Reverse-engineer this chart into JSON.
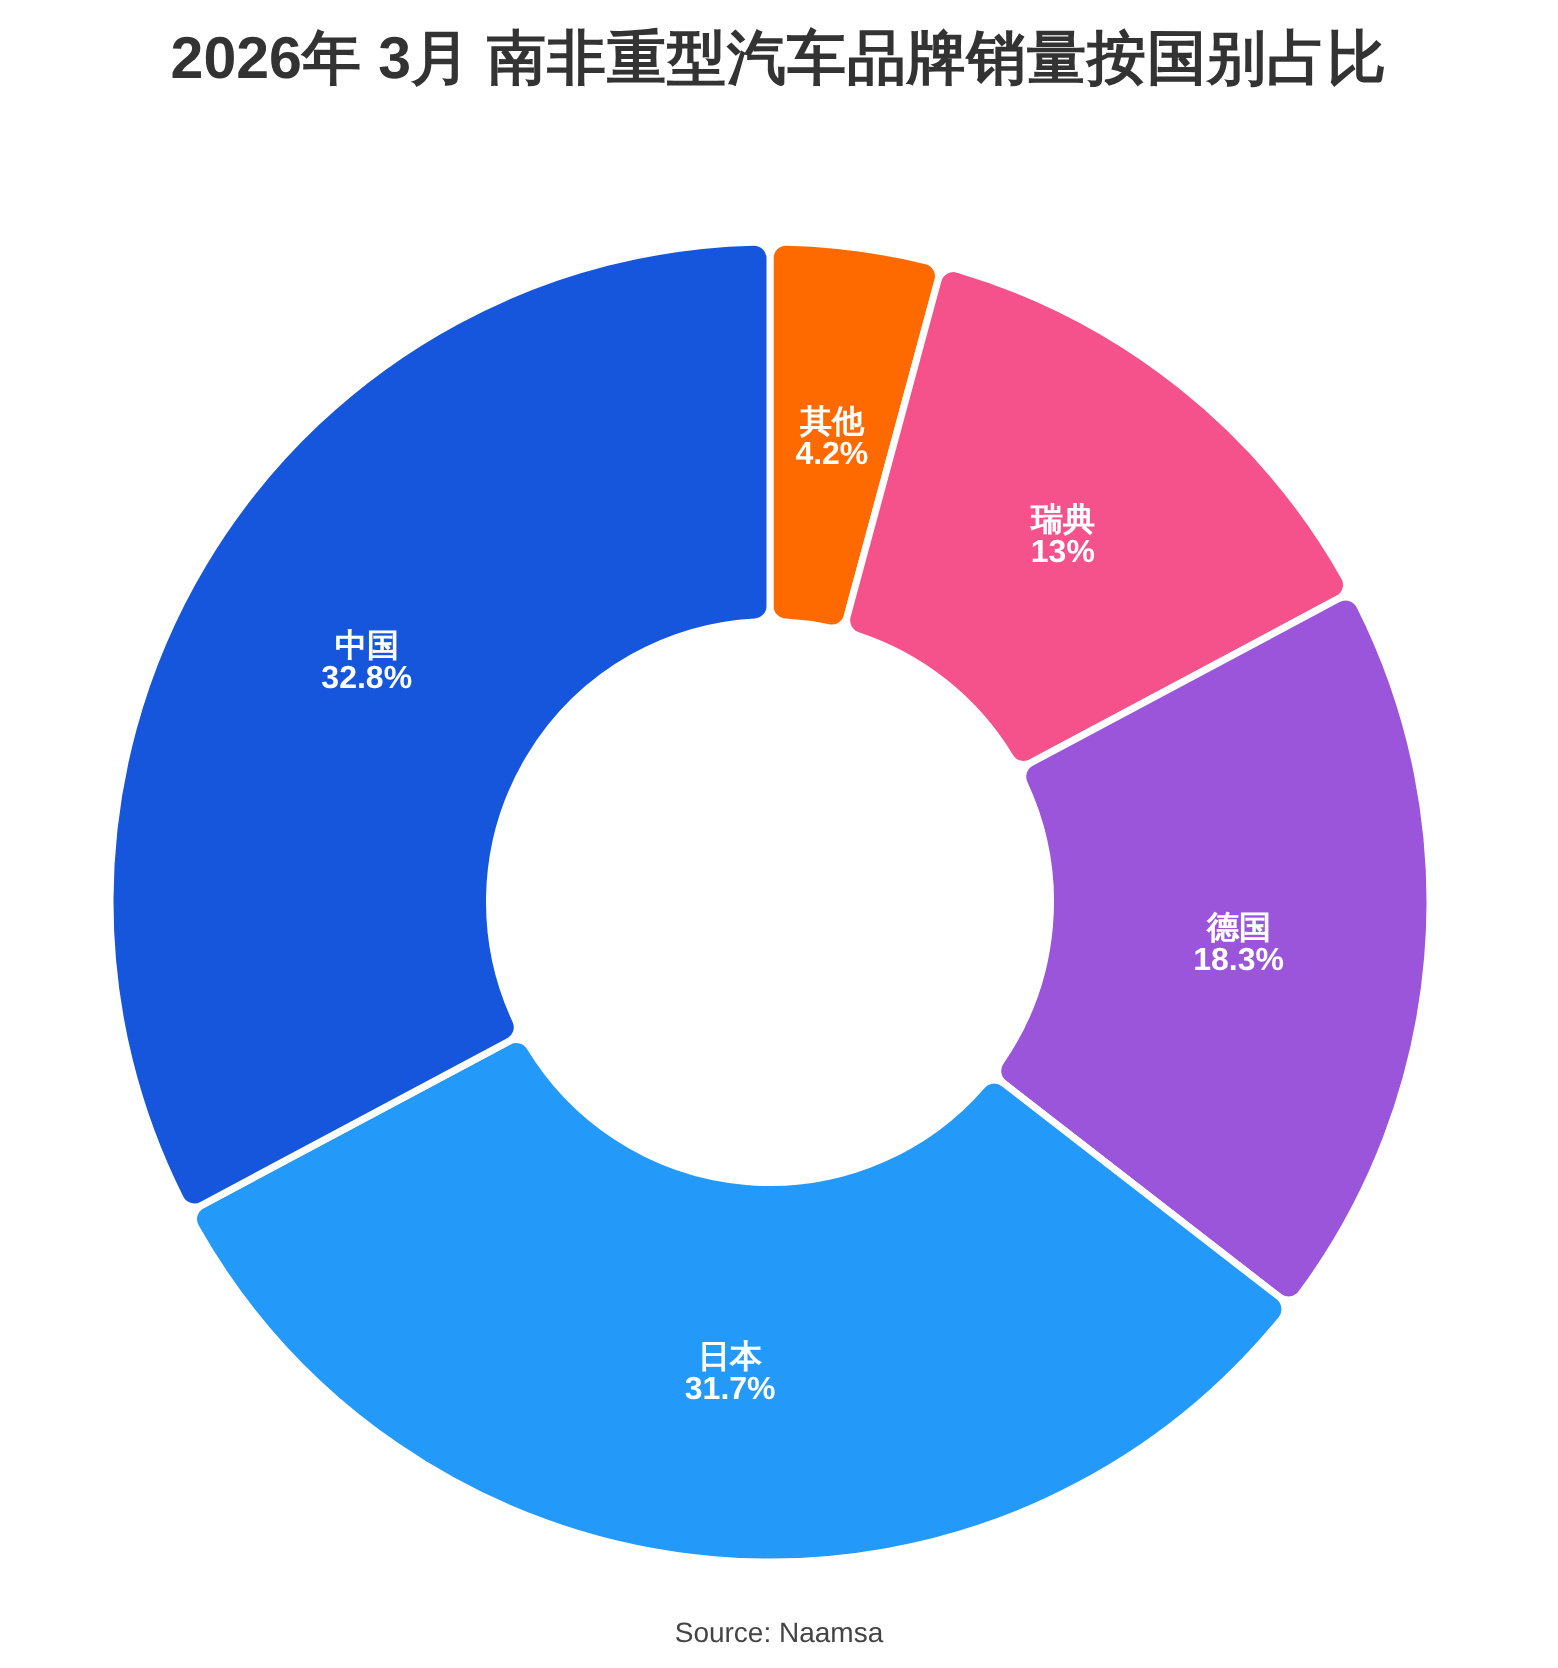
{
  "chart_data": {
    "type": "donut",
    "title": "2026年 3月 南非重型汽车品牌销量按国别占比",
    "categories": [
      "其他",
      "瑞典",
      "德国",
      "日本",
      "中国"
    ],
    "values": [
      4.2,
      13,
      18.3,
      31.7,
      32.8
    ],
    "colors": [
      "#ff6a00",
      "#f5528c",
      "#9a55db",
      "#2399fa",
      "#1556dc"
    ],
    "value_labels": [
      "4.2%",
      "13%",
      "18.3%",
      "31.7%",
      "32.8%"
    ],
    "annotations": [
      "Source: Naamsa"
    ]
  }
}
